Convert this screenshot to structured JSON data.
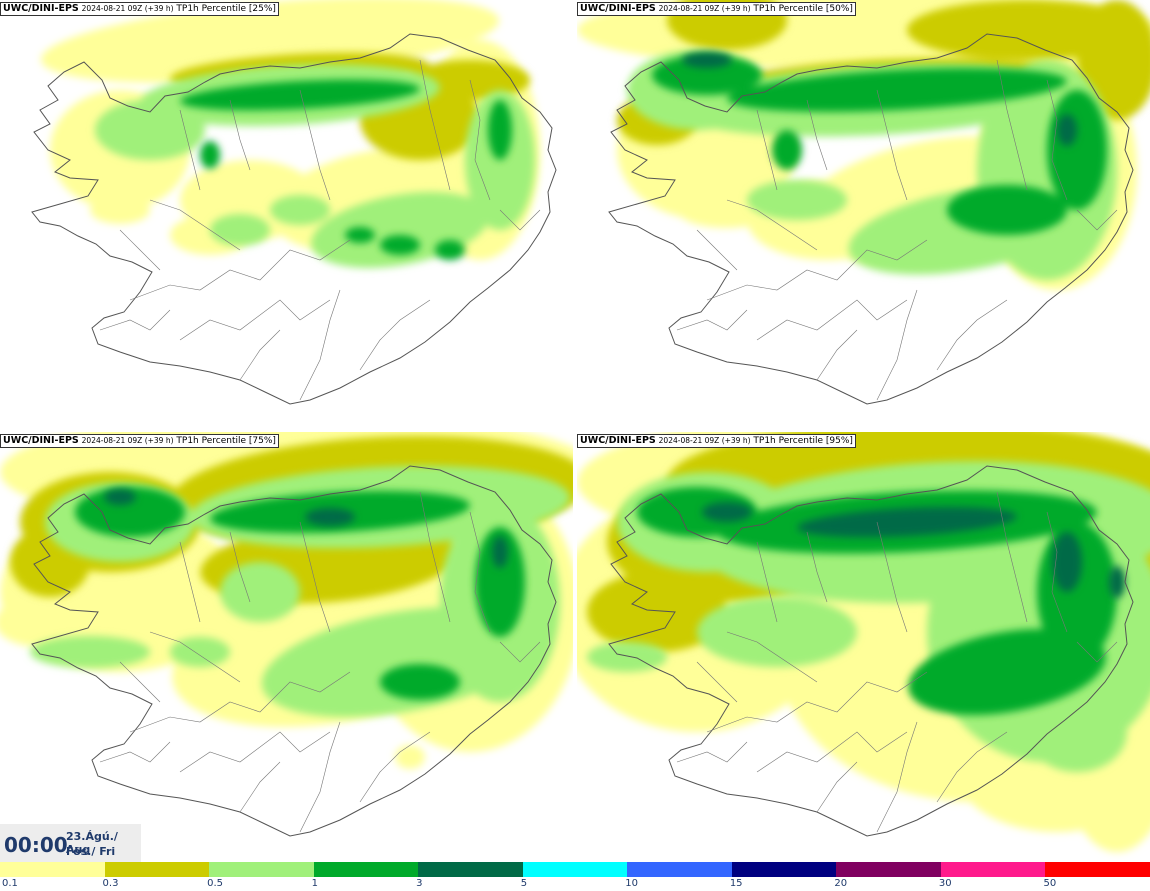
{
  "panels": [
    {
      "model": "UWC/DINI-EPS",
      "run": "2024-08-21 09Z (+39 h)",
      "field": "TP1h Percentile [25%]",
      "bg": "#ffffff"
    },
    {
      "model": "UWC/DINI-EPS",
      "run": "2024-08-21 09Z (+39 h)",
      "field": "TP1h Percentile [50%]",
      "bg": "#ffffff"
    },
    {
      "model": "UWC/DINI-EPS",
      "run": "2024-08-21 09Z (+39 h)",
      "field": "TP1h Percentile [75%]",
      "bg": "#ffffff"
    },
    {
      "model": "UWC/DINI-EPS",
      "run": "2024-08-21 09Z (+39 h)",
      "field": "TP1h Percentile [95%]",
      "bg": "#ffffff"
    }
  ],
  "valid_time": {
    "time": "00:00",
    "date_line1": "23.Ágú./ Aug",
    "date_line2": "Fös./ Fri"
  },
  "colorbar": {
    "levels": [
      "0.1",
      "0.3",
      "0.5",
      "1",
      "3",
      "5",
      "10",
      "15",
      "20",
      "30",
      "50"
    ],
    "colors": [
      "#ffff99",
      "#cccc00",
      "#a0f07a",
      "#00aa2a",
      "#006a46",
      "#00ffff",
      "#3366ff",
      "#000080",
      "#800060",
      "#ff1a8c",
      "#ff0000"
    ]
  },
  "map_icon": "iceland-outline-map"
}
